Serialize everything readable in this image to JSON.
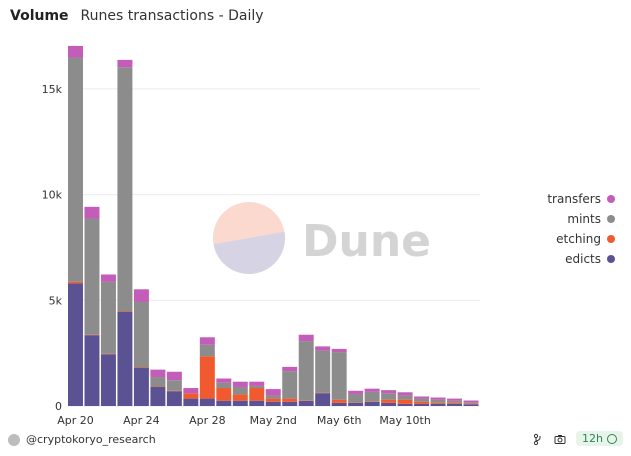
{
  "header": {
    "title": "Volume",
    "subtitle": "Runes transactions - Daily"
  },
  "footer": {
    "credit": "@cryptokoryo_research",
    "refresh": "12h"
  },
  "watermark": "Dune",
  "colors": {
    "transfers": "#c45cb9",
    "mints": "#8c8c8c",
    "etching": "#f05a2e",
    "edicts": "#5b5294",
    "grid": "#ebebeb",
    "accent": "#2f855a"
  },
  "chart_data": {
    "type": "bar",
    "stacked": true,
    "title": "Runes transactions - Daily",
    "xlabel": "",
    "ylabel": "",
    "ylim": [
      0,
      17500
    ],
    "yticks": [
      0,
      5000,
      10000,
      15000
    ],
    "ytick_labels": [
      "0",
      "5k",
      "10k",
      "15k"
    ],
    "categories": [
      "Apr 20",
      "Apr 21",
      "Apr 22",
      "Apr 23",
      "Apr 24",
      "Apr 25",
      "Apr 26",
      "Apr 27",
      "Apr 28",
      "Apr 29",
      "Apr 30",
      "May 1",
      "May 2",
      "May 3",
      "May 4",
      "May 5",
      "May 6",
      "May 7",
      "May 8",
      "May 9",
      "May 10",
      "May 11",
      "May 12",
      "May 13",
      "May 14"
    ],
    "xtick_labels": [
      {
        "label": "Apr 20",
        "category": "Apr 20"
      },
      {
        "label": "Apr 24",
        "category": "Apr 24"
      },
      {
        "label": "Apr 28",
        "category": "Apr 28"
      },
      {
        "label": "May 2nd",
        "category": "May 2"
      },
      {
        "label": "May 6th",
        "category": "May 6"
      },
      {
        "label": "May 10th",
        "category": "May 10"
      }
    ],
    "legend_position": "right",
    "series": [
      {
        "name": "edicts",
        "color": "#5b5294",
        "values": [
          5800,
          3350,
          2450,
          4450,
          1800,
          900,
          700,
          350,
          350,
          250,
          250,
          250,
          200,
          200,
          250,
          600,
          150,
          150,
          200,
          150,
          100,
          100,
          100,
          100,
          80
        ]
      },
      {
        "name": "etching",
        "color": "#f05a2e",
        "values": [
          80,
          20,
          20,
          20,
          20,
          20,
          20,
          250,
          2000,
          600,
          300,
          600,
          150,
          150,
          20,
          20,
          150,
          20,
          20,
          150,
          200,
          100,
          50,
          50,
          30
        ]
      },
      {
        "name": "mints",
        "color": "#8c8c8c",
        "values": [
          10600,
          5500,
          3400,
          11550,
          3100,
          450,
          500,
          0,
          550,
          250,
          350,
          100,
          150,
          1300,
          2800,
          2000,
          2250,
          400,
          450,
          300,
          200,
          150,
          150,
          100,
          70
        ]
      },
      {
        "name": "transfers",
        "color": "#c45cb9",
        "values": [
          550,
          550,
          350,
          350,
          600,
          350,
          400,
          250,
          350,
          200,
          250,
          200,
          300,
          200,
          300,
          200,
          150,
          150,
          150,
          150,
          150,
          100,
          100,
          100,
          80
        ]
      }
    ]
  }
}
